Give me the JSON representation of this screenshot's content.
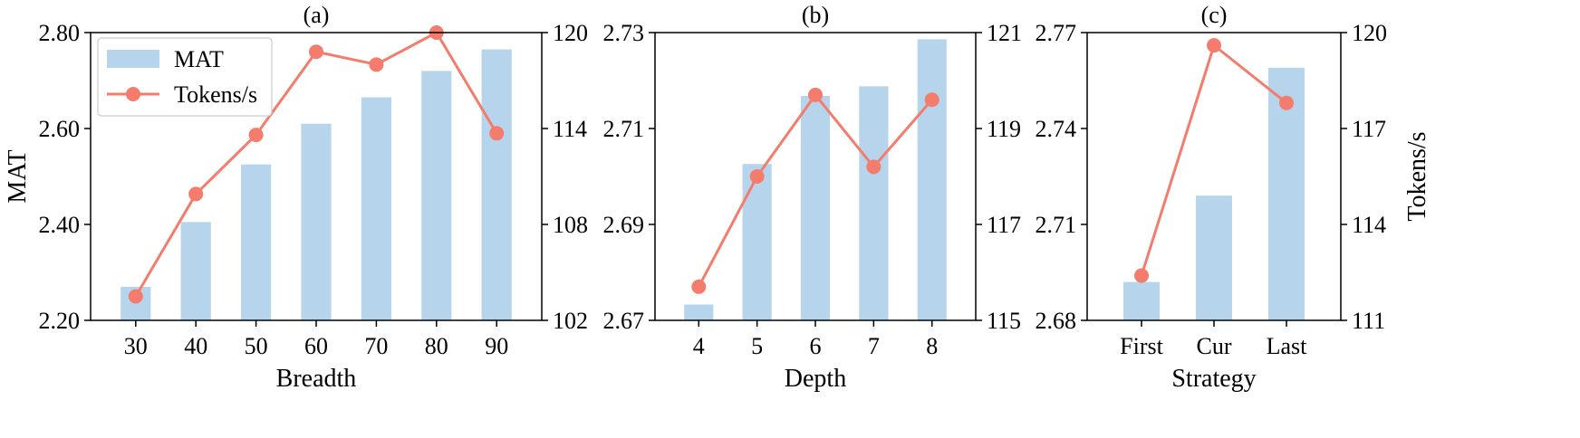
{
  "colors": {
    "bar": "#b6d4ec",
    "line": "#f47c6c",
    "axis": "#000000",
    "legend_border": "#cccccc"
  },
  "legend": {
    "entries": [
      "MAT",
      "Tokens/s"
    ],
    "placement": "top-left of panel (a)"
  },
  "chart_data": [
    {
      "type": "bar+line",
      "title": "(a)",
      "xlabel": "Breadth",
      "ylabel": "MAT",
      "ylabel_right": "",
      "categories": [
        "30",
        "40",
        "50",
        "60",
        "70",
        "80",
        "90"
      ],
      "series": [
        {
          "name": "MAT",
          "type": "bar",
          "axis": "left",
          "values": [
            2.27,
            2.405,
            2.525,
            2.61,
            2.665,
            2.72,
            2.765
          ]
        },
        {
          "name": "Tokens/s",
          "type": "line",
          "axis": "right",
          "values": [
            103.5,
            109.9,
            113.6,
            118.8,
            118.0,
            120.0,
            113.7
          ]
        }
      ],
      "ylim": [
        2.2,
        2.8
      ],
      "yticks": [
        "2.20",
        "2.40",
        "2.60",
        "2.80"
      ],
      "ylim_right": [
        102,
        120
      ],
      "yticks_right": [
        "102",
        "108",
        "114",
        "120"
      ],
      "grid": false
    },
    {
      "type": "bar+line",
      "title": "(b)",
      "xlabel": "Depth",
      "ylabel": "",
      "ylabel_right": "",
      "categories": [
        "4",
        "5",
        "6",
        "7",
        "8"
      ],
      "series": [
        {
          "name": "MAT",
          "type": "bar",
          "axis": "left",
          "values": [
            2.6733,
            2.7026,
            2.7168,
            2.7188,
            2.7286
          ]
        },
        {
          "name": "Tokens/s",
          "type": "line",
          "axis": "right",
          "values": [
            115.7,
            118.0,
            119.7,
            118.2,
            119.6
          ]
        }
      ],
      "ylim": [
        2.67,
        2.73
      ],
      "yticks": [
        "2.67",
        "2.69",
        "2.71",
        "2.73"
      ],
      "ylim_right": [
        115,
        121
      ],
      "yticks_right": [
        "115",
        "117",
        "119",
        "121"
      ],
      "grid": false
    },
    {
      "type": "bar+line",
      "title": "(c)",
      "xlabel": "Strategy",
      "ylabel": "",
      "ylabel_right": "Tokens/s",
      "categories": [
        "First",
        "Cur",
        "Last"
      ],
      "series": [
        {
          "name": "MAT",
          "type": "bar",
          "axis": "left",
          "values": [
            2.692,
            2.719,
            2.759
          ]
        },
        {
          "name": "Tokens/s",
          "type": "line",
          "axis": "right",
          "values": [
            112.4,
            119.6,
            117.8
          ]
        }
      ],
      "ylim": [
        2.68,
        2.77
      ],
      "yticks": [
        "2.68",
        "2.71",
        "2.74",
        "2.77"
      ],
      "ylim_right": [
        111,
        120
      ],
      "yticks_right": [
        "111",
        "114",
        "117",
        "120"
      ],
      "grid": false
    }
  ]
}
